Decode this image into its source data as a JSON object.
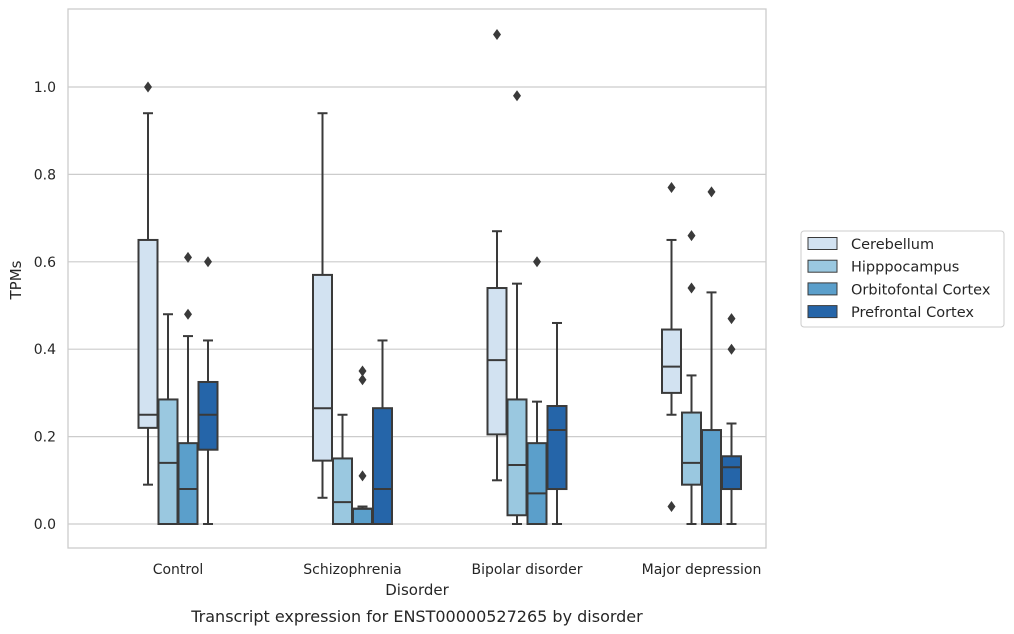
{
  "chart_data": {
    "type": "box",
    "caption": "Transcript expression for ENST00000527265 by disorder",
    "xlabel": "Disorder",
    "ylabel": "TPMs",
    "ylim": [
      -0.055,
      1.18
    ],
    "yticks": [
      0.0,
      0.2,
      0.4,
      0.6,
      0.8,
      1.0
    ],
    "ytick_labels": [
      "0.0",
      "0.2",
      "0.4",
      "0.6",
      "0.8",
      "1.0"
    ],
    "grid": "horizontal",
    "legend_position": "right",
    "categories": [
      "Control",
      "Schizophrenia",
      "Bipolar disorder",
      "Major depression"
    ],
    "series": [
      {
        "name": "Cerebellum",
        "color": "#d2e2f1",
        "boxes": [
          {
            "whisker_low": 0.09,
            "q1": 0.22,
            "median": 0.25,
            "q3": 0.65,
            "whisker_high": 0.94,
            "outliers": [
              1.0
            ]
          },
          {
            "whisker_low": 0.06,
            "q1": 0.145,
            "median": 0.265,
            "q3": 0.57,
            "whisker_high": 0.94,
            "outliers": []
          },
          {
            "whisker_low": 0.1,
            "q1": 0.205,
            "median": 0.375,
            "q3": 0.54,
            "whisker_high": 0.67,
            "outliers": [
              1.12
            ]
          },
          {
            "whisker_low": 0.25,
            "q1": 0.3,
            "median": 0.36,
            "q3": 0.445,
            "whisker_high": 0.65,
            "outliers": [
              0.77,
              0.04
            ]
          }
        ]
      },
      {
        "name": "Hipppocampus",
        "color": "#9ac8e0",
        "boxes": [
          {
            "whisker_low": 0.0,
            "q1": 0.0,
            "median": 0.14,
            "q3": 0.285,
            "whisker_high": 0.48,
            "outliers": []
          },
          {
            "whisker_low": 0.0,
            "q1": 0.0,
            "median": 0.05,
            "q3": 0.15,
            "whisker_high": 0.25,
            "outliers": []
          },
          {
            "whisker_low": 0.0,
            "q1": 0.02,
            "median": 0.135,
            "q3": 0.285,
            "whisker_high": 0.55,
            "outliers": [
              0.98
            ]
          },
          {
            "whisker_low": 0.0,
            "q1": 0.09,
            "median": 0.14,
            "q3": 0.255,
            "whisker_high": 0.34,
            "outliers": [
              0.66,
              0.54
            ]
          }
        ]
      },
      {
        "name": "Orbitofontal Cortex",
        "color": "#5b9fcb",
        "boxes": [
          {
            "whisker_low": 0.0,
            "q1": 0.0,
            "median": 0.08,
            "q3": 0.185,
            "whisker_high": 0.43,
            "outliers": [
              0.61,
              0.48
            ]
          },
          {
            "whisker_low": 0.0,
            "q1": 0.0,
            "median": 0.035,
            "q3": 0.035,
            "whisker_high": 0.04,
            "outliers": [
              0.35,
              0.33,
              0.11
            ]
          },
          {
            "whisker_low": 0.0,
            "q1": 0.0,
            "median": 0.07,
            "q3": 0.185,
            "whisker_high": 0.28,
            "outliers": [
              0.6
            ]
          },
          {
            "whisker_low": 0.0,
            "q1": 0.0,
            "median": 0.0,
            "q3": 0.215,
            "whisker_high": 0.53,
            "outliers": [
              0.76
            ]
          }
        ]
      },
      {
        "name": "Prefrontal Cortex",
        "color": "#2565a9",
        "boxes": [
          {
            "whisker_low": 0.0,
            "q1": 0.17,
            "median": 0.25,
            "q3": 0.325,
            "whisker_high": 0.42,
            "outliers": [
              0.6
            ]
          },
          {
            "whisker_low": 0.0,
            "q1": 0.0,
            "median": 0.08,
            "q3": 0.265,
            "whisker_high": 0.42,
            "outliers": []
          },
          {
            "whisker_low": 0.0,
            "q1": 0.08,
            "median": 0.215,
            "q3": 0.27,
            "whisker_high": 0.46,
            "outliers": []
          },
          {
            "whisker_low": 0.0,
            "q1": 0.08,
            "median": 0.13,
            "q3": 0.155,
            "whisker_high": 0.23,
            "outliers": [
              0.47,
              0.4
            ]
          }
        ]
      }
    ]
  }
}
